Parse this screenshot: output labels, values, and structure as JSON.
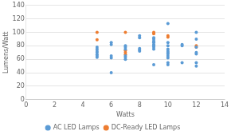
{
  "chart_data": {
    "type": "scatter",
    "xlabel": "Watts",
    "ylabel": "Lumens/Watt",
    "xlim": [
      0,
      14
    ],
    "ylim": [
      0,
      140
    ],
    "xticks": [
      0,
      2,
      4,
      6,
      8,
      10,
      12,
      14
    ],
    "yticks": [
      0,
      20,
      40,
      60,
      80,
      100,
      120,
      140
    ],
    "grid": "y",
    "legend": "bottom",
    "series": [
      {
        "name": "AC LED Lamps",
        "color": "#5B9BD5",
        "x": [
          5,
          5,
          5,
          5,
          5,
          5,
          5,
          6,
          6,
          6,
          6,
          6,
          7,
          7,
          7,
          7,
          7,
          7,
          8,
          8,
          8,
          8,
          8,
          9,
          9,
          9,
          9,
          9,
          9,
          9,
          9,
          9,
          10,
          10,
          10,
          10,
          10,
          10,
          10,
          10,
          10,
          10,
          10,
          11,
          11,
          11,
          12,
          12,
          12,
          12,
          12,
          12,
          12
        ],
        "values": [
          65,
          67,
          70,
          72,
          75,
          78,
          63,
          40,
          82,
          85,
          62,
          65,
          65,
          63,
          75,
          78,
          80,
          60,
          74,
          72,
          76,
          95,
          92,
          52,
          75,
          78,
          80,
          82,
          85,
          87,
          90,
          92,
          52,
          55,
          62,
          65,
          68,
          70,
          72,
          75,
          80,
          85,
          113,
          55,
          80,
          82,
          50,
          55,
          68,
          70,
          78,
          90,
          100
        ]
      },
      {
        "name": "DC-Ready LED Lamps",
        "color": "#ED7D31",
        "x": [
          5,
          5,
          7,
          7,
          7,
          7,
          9,
          9,
          10,
          10,
          12,
          12
        ],
        "values": [
          89,
          100,
          67,
          70,
          73,
          100,
          98,
          100,
          93,
          95,
          78,
          80
        ]
      }
    ]
  }
}
